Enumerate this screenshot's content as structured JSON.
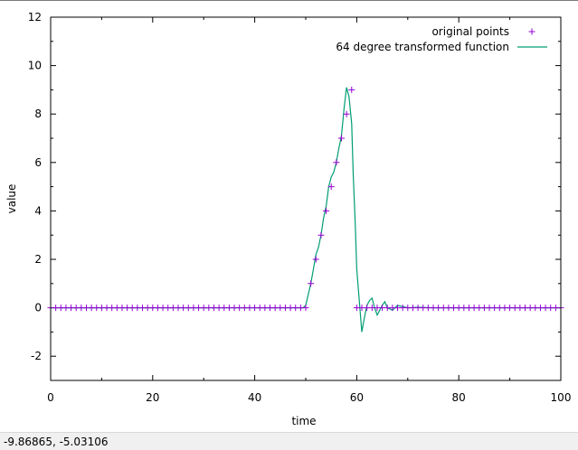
{
  "status_bar": {
    "coordinates": "-9.86865, -5.03106"
  },
  "chart_data": {
    "type": "line",
    "title": "",
    "xlabel": "time",
    "ylabel": "value",
    "xlim": [
      0,
      100
    ],
    "ylim": [
      -3,
      12
    ],
    "x_ticks": [
      0,
      20,
      40,
      60,
      80,
      100
    ],
    "y_ticks": [
      -2,
      0,
      2,
      4,
      6,
      8,
      10,
      12
    ],
    "grid": false,
    "legend_position": "top-right",
    "series": [
      {
        "name": "original points",
        "style": "points-plus",
        "color": "#9400d3",
        "x": [
          0,
          1,
          2,
          3,
          4,
          5,
          6,
          7,
          8,
          9,
          10,
          11,
          12,
          13,
          14,
          15,
          16,
          17,
          18,
          19,
          20,
          21,
          22,
          23,
          24,
          25,
          26,
          27,
          28,
          29,
          30,
          31,
          32,
          33,
          34,
          35,
          36,
          37,
          38,
          39,
          40,
          41,
          42,
          43,
          44,
          45,
          46,
          47,
          48,
          49,
          50,
          51,
          52,
          53,
          54,
          55,
          56,
          57,
          58,
          59,
          60,
          61,
          62,
          63,
          64,
          65,
          66,
          67,
          68,
          69,
          70,
          71,
          72,
          73,
          74,
          75,
          76,
          77,
          78,
          79,
          80,
          81,
          82,
          83,
          84,
          85,
          86,
          87,
          88,
          89,
          90,
          91,
          92,
          93,
          94,
          95,
          96,
          97,
          98,
          99,
          100
        ],
        "y": [
          0,
          0,
          0,
          0,
          0,
          0,
          0,
          0,
          0,
          0,
          0,
          0,
          0,
          0,
          0,
          0,
          0,
          0,
          0,
          0,
          0,
          0,
          0,
          0,
          0,
          0,
          0,
          0,
          0,
          0,
          0,
          0,
          0,
          0,
          0,
          0,
          0,
          0,
          0,
          0,
          0,
          0,
          0,
          0,
          0,
          0,
          0,
          0,
          0,
          0,
          0,
          1,
          2,
          3,
          4,
          5,
          6,
          7,
          8,
          9,
          0,
          0,
          0,
          0,
          0,
          0,
          0,
          0,
          0,
          0,
          0,
          0,
          0,
          0,
          0,
          0,
          0,
          0,
          0,
          0,
          0,
          0,
          0,
          0,
          0,
          0,
          0,
          0,
          0,
          0,
          0,
          0,
          0,
          0,
          0,
          0,
          0,
          0,
          0,
          0,
          0
        ]
      },
      {
        "name": "64 degree transformed function",
        "style": "line",
        "color": "#009e73",
        "x": [
          0,
          49.5,
          50,
          51,
          51.5,
          52,
          52.5,
          53,
          53.5,
          54,
          54.5,
          55,
          55.5,
          56,
          56.5,
          57,
          57.5,
          58,
          58.5,
          59,
          59.3,
          59.7,
          60,
          60.5,
          61,
          61.5,
          62,
          62.5,
          63,
          63.5,
          64,
          64.5,
          65,
          65.5,
          66,
          67,
          68,
          69,
          70,
          72,
          75,
          100
        ],
        "y": [
          0,
          0,
          0.1,
          1.0,
          1.6,
          2.2,
          2.5,
          3.0,
          3.7,
          4.2,
          5.0,
          5.4,
          5.6,
          6.0,
          6.6,
          7.1,
          8.2,
          9.1,
          8.7,
          7.6,
          5.5,
          3.5,
          1.6,
          0.3,
          -1.0,
          -0.4,
          0.1,
          0.3,
          0.4,
          0.0,
          -0.3,
          -0.1,
          0.1,
          0.25,
          0.0,
          -0.1,
          0.1,
          0.05,
          0.0,
          0.02,
          0.0,
          0
        ]
      }
    ]
  }
}
